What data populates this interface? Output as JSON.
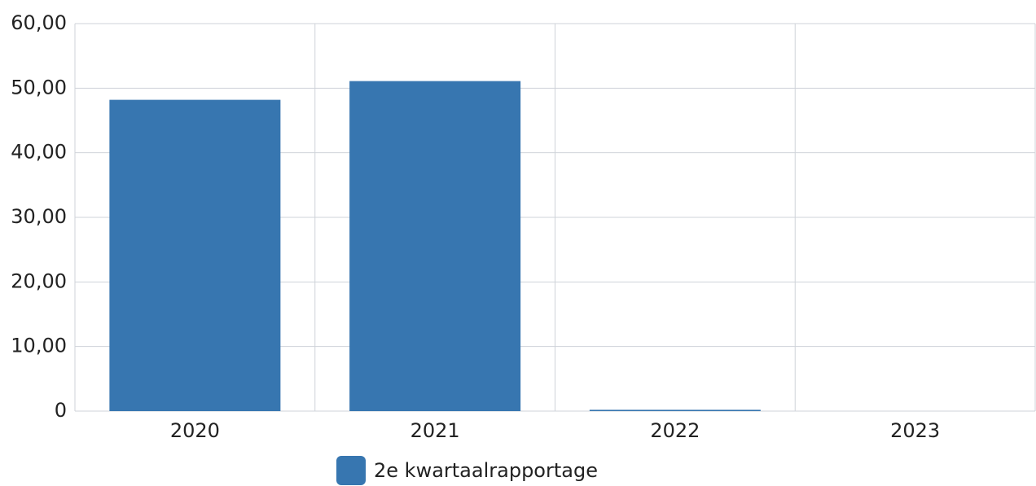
{
  "chart_data": {
    "type": "bar",
    "categories": [
      "2020",
      "2021",
      "2022",
      "2023"
    ],
    "series": [
      {
        "name": "2e kwartaalrapportage",
        "color": "#3776b0",
        "values": [
          48.2,
          51.1,
          0.2,
          0
        ]
      }
    ],
    "ylim": [
      0,
      60
    ],
    "yticks": [
      0,
      {
        "value": 10,
        "label": "10,00"
      },
      {
        "value": 20,
        "label": "20,00"
      },
      {
        "value": 30,
        "label": "30,00"
      },
      {
        "value": 40,
        "label": "40,00"
      },
      {
        "value": 50,
        "label": "50,00"
      },
      {
        "value": 60,
        "label": "60,00"
      }
    ],
    "grid": true,
    "legend": "bottom"
  }
}
